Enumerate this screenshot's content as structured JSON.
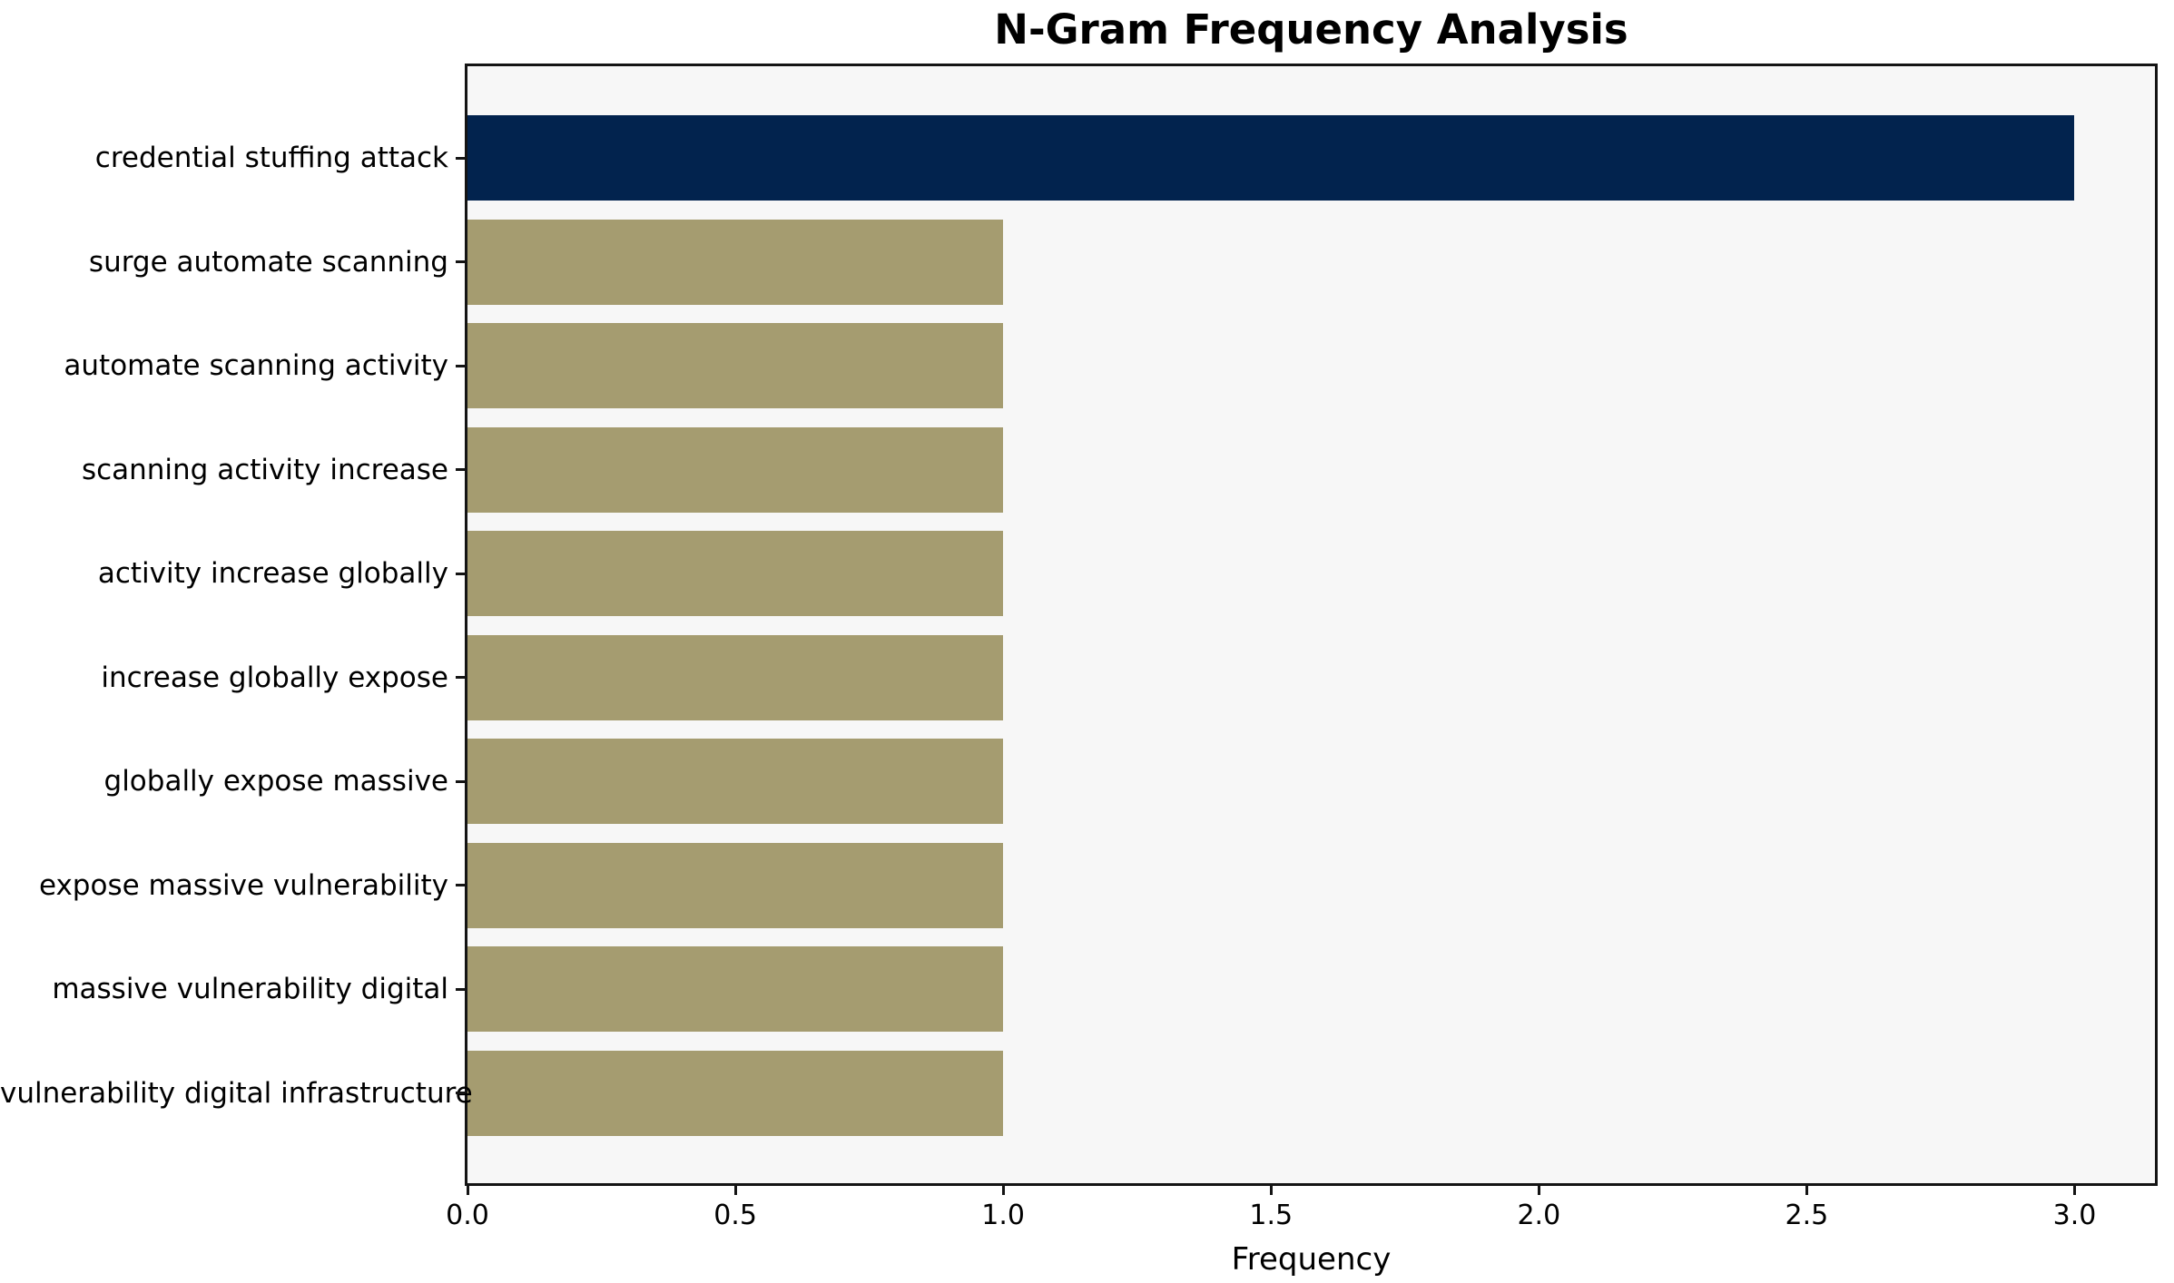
{
  "chart_data": {
    "type": "bar",
    "orientation": "horizontal",
    "title": "N-Gram Frequency Analysis",
    "xlabel": "Frequency",
    "ylabel": "",
    "categories": [
      "credential stuffing attack",
      "surge automate scanning",
      "automate scanning activity",
      "scanning activity increase",
      "activity increase globally",
      "increase globally expose",
      "globally expose massive",
      "expose massive vulnerability",
      "massive vulnerability digital",
      "vulnerability digital infrastructure"
    ],
    "values": [
      3,
      1,
      1,
      1,
      1,
      1,
      1,
      1,
      1,
      1
    ],
    "bar_colors": [
      "#02234e",
      "#a59c70",
      "#a59c70",
      "#a59c70",
      "#a59c70",
      "#a59c70",
      "#a59c70",
      "#a59c70",
      "#a59c70",
      "#a59c70"
    ],
    "xlim": [
      0,
      3.15
    ],
    "x_tick_values": [
      0,
      0.5,
      1,
      1.5,
      2,
      2.5,
      3
    ],
    "x_tick_labels": [
      "0.0",
      "0.5",
      "1.0",
      "1.5",
      "2.0",
      "2.5",
      "3.0"
    ],
    "grid": false,
    "legend": null,
    "colors": {
      "highlight_bar": "#02234e",
      "default_bar": "#a59c70",
      "plot_background": "#f7f7f7",
      "figure_background": "#ffffff",
      "frame": "#141414",
      "text": "#000000"
    }
  }
}
